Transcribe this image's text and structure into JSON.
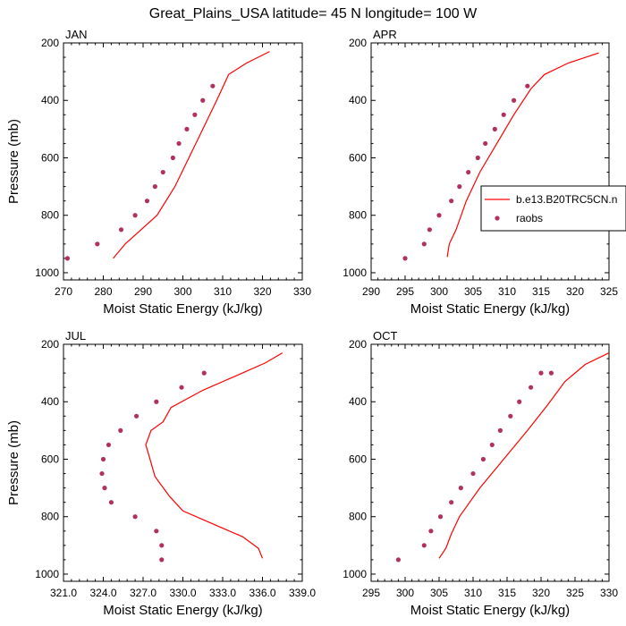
{
  "figure": {
    "title": "Great_Plains_USA  latitude= 45 N longitude= 100 W"
  },
  "chart_data": [
    {
      "type": "line",
      "title": "JAN",
      "xlabel": "Moist Static Energy (kJ/kg)",
      "ylabel": "Pressure (mb)",
      "xlim": [
        270,
        330
      ],
      "ylim": [
        1025,
        200
      ],
      "xticks": [
        270,
        280,
        290,
        300,
        310,
        320,
        330
      ],
      "xtick_labels": [
        "270",
        "280",
        "290",
        "300",
        "310",
        "320",
        "330"
      ],
      "yticks": [
        200,
        400,
        600,
        800,
        1000
      ],
      "ytick_labels": [
        "200",
        "400",
        "600",
        "800",
        "1000"
      ],
      "series": [
        {
          "name": "b.e13.B20TRC5CN.n",
          "kind": "line",
          "color": "#ff0000",
          "x": [
            282.5,
            285.5,
            289.5,
            293.5,
            298.0,
            301.5,
            305.0,
            308.5,
            311.5,
            316.0,
            321.8
          ],
          "y": [
            950,
            900,
            850,
            800,
            700,
            600,
            500,
            400,
            310,
            270,
            230
          ]
        },
        {
          "name": "raobs",
          "kind": "scatter",
          "color": "#b03060",
          "x": [
            271.0,
            278.5,
            284.5,
            288.0,
            291.0,
            293.0,
            295.0,
            297.5,
            299.0,
            301.0,
            303.0,
            305.0,
            307.5
          ],
          "y": [
            950,
            900,
            850,
            800,
            750,
            700,
            650,
            600,
            550,
            500,
            450,
            400,
            350
          ]
        }
      ]
    },
    {
      "type": "line",
      "title": "APR",
      "xlabel": "Moist Static Energy (kJ/kg)",
      "ylabel": "",
      "xlim": [
        290,
        325
      ],
      "ylim": [
        1025,
        200
      ],
      "xticks": [
        290,
        295,
        300,
        305,
        310,
        315,
        320,
        325
      ],
      "xtick_labels": [
        "290",
        "295",
        "300",
        "305",
        "310",
        "315",
        "320",
        "325"
      ],
      "yticks": [
        200,
        400,
        600,
        800,
        1000
      ],
      "ytick_labels": [
        "200",
        "400",
        "600",
        "800",
        "1000"
      ],
      "series": [
        {
          "name": "b.e13.B20TRC5CN.n",
          "kind": "line",
          "color": "#ff0000",
          "x": [
            301.2,
            301.5,
            302.5,
            304.0,
            306.0,
            308.5,
            311.0,
            313.5,
            315.5,
            319.0,
            323.5
          ],
          "y": [
            945,
            900,
            850,
            750,
            650,
            550,
            450,
            360,
            310,
            270,
            235
          ]
        },
        {
          "name": "raobs",
          "kind": "scatter",
          "color": "#b03060",
          "x": [
            295.0,
            297.8,
            298.6,
            300.0,
            301.8,
            303.0,
            304.3,
            305.7,
            306.8,
            308.2,
            309.5,
            311.0,
            313.0
          ],
          "y": [
            950,
            900,
            850,
            800,
            750,
            700,
            650,
            600,
            550,
            500,
            450,
            400,
            350
          ]
        }
      ],
      "legend": {
        "placement": "right",
        "entries": [
          {
            "label": "b.e13.B20TRC5CN.n",
            "marker": "line"
          },
          {
            "label": "raobs",
            "marker": "dot"
          }
        ]
      }
    },
    {
      "type": "line",
      "title": "JUL",
      "xlabel": "Moist Static Energy (kJ/kg)",
      "ylabel": "Pressure (mb)",
      "xlim": [
        321,
        339
      ],
      "ylim": [
        1025,
        200
      ],
      "xticks": [
        321,
        324,
        327,
        330,
        333,
        336,
        339
      ],
      "xtick_labels": [
        "321.0",
        "324.0",
        "327.0",
        "330.0",
        "333.0",
        "336.0",
        "339.0"
      ],
      "yticks": [
        200,
        400,
        600,
        800,
        1000
      ],
      "ytick_labels": [
        "200",
        "400",
        "600",
        "800",
        "1000"
      ],
      "series": [
        {
          "name": "b.e13.B20TRC5CN.n",
          "kind": "line",
          "color": "#ff0000",
          "x": [
            336.0,
            335.7,
            334.5,
            332.0,
            330.0,
            329.0,
            327.9,
            327.4,
            327.2,
            327.6,
            328.5,
            329.1,
            331.5,
            334.0,
            336.2,
            337.5
          ],
          "y": [
            945,
            910,
            870,
            820,
            780,
            730,
            660,
            580,
            550,
            500,
            470,
            420,
            360,
            310,
            265,
            230
          ]
        },
        {
          "name": "raobs",
          "kind": "scatter",
          "color": "#b03060",
          "x": [
            328.4,
            328.4,
            328.0,
            326.4,
            324.6,
            324.1,
            323.9,
            324.0,
            324.4,
            325.3,
            326.5,
            328.0,
            329.9,
            331.6
          ],
          "y": [
            950,
            900,
            850,
            800,
            750,
            700,
            650,
            600,
            550,
            500,
            450,
            400,
            350,
            300
          ]
        }
      ]
    },
    {
      "type": "line",
      "title": "OCT",
      "xlabel": "Moist Static Energy (kJ/kg)",
      "ylabel": "",
      "xlim": [
        295,
        330
      ],
      "ylim": [
        1025,
        200
      ],
      "xticks": [
        295,
        300,
        305,
        310,
        315,
        320,
        325,
        330
      ],
      "xtick_labels": [
        "295",
        "300",
        "305",
        "310",
        "315",
        "320",
        "325",
        "330"
      ],
      "yticks": [
        200,
        400,
        600,
        800,
        1000
      ],
      "ytick_labels": [
        "200",
        "400",
        "600",
        "800",
        "1000"
      ],
      "series": [
        {
          "name": "b.e13.B20TRC5CN.n",
          "kind": "line",
          "color": "#ff0000",
          "x": [
            305.0,
            306.0,
            306.8,
            308.0,
            311.0,
            314.5,
            318.0,
            321.0,
            323.5,
            326.5,
            330.0
          ],
          "y": [
            945,
            910,
            860,
            800,
            700,
            600,
            500,
            410,
            330,
            270,
            230
          ]
        },
        {
          "name": "raobs",
          "kind": "scatter",
          "color": "#b03060",
          "x": [
            299.0,
            302.8,
            303.8,
            305.2,
            306.8,
            308.2,
            310.0,
            311.5,
            312.8,
            314.0,
            315.5,
            316.8,
            318.5,
            320.0,
            321.5
          ],
          "y": [
            950,
            900,
            850,
            800,
            750,
            700,
            650,
            600,
            550,
            500,
            450,
            400,
            350,
            300,
            300
          ]
        }
      ]
    }
  ]
}
